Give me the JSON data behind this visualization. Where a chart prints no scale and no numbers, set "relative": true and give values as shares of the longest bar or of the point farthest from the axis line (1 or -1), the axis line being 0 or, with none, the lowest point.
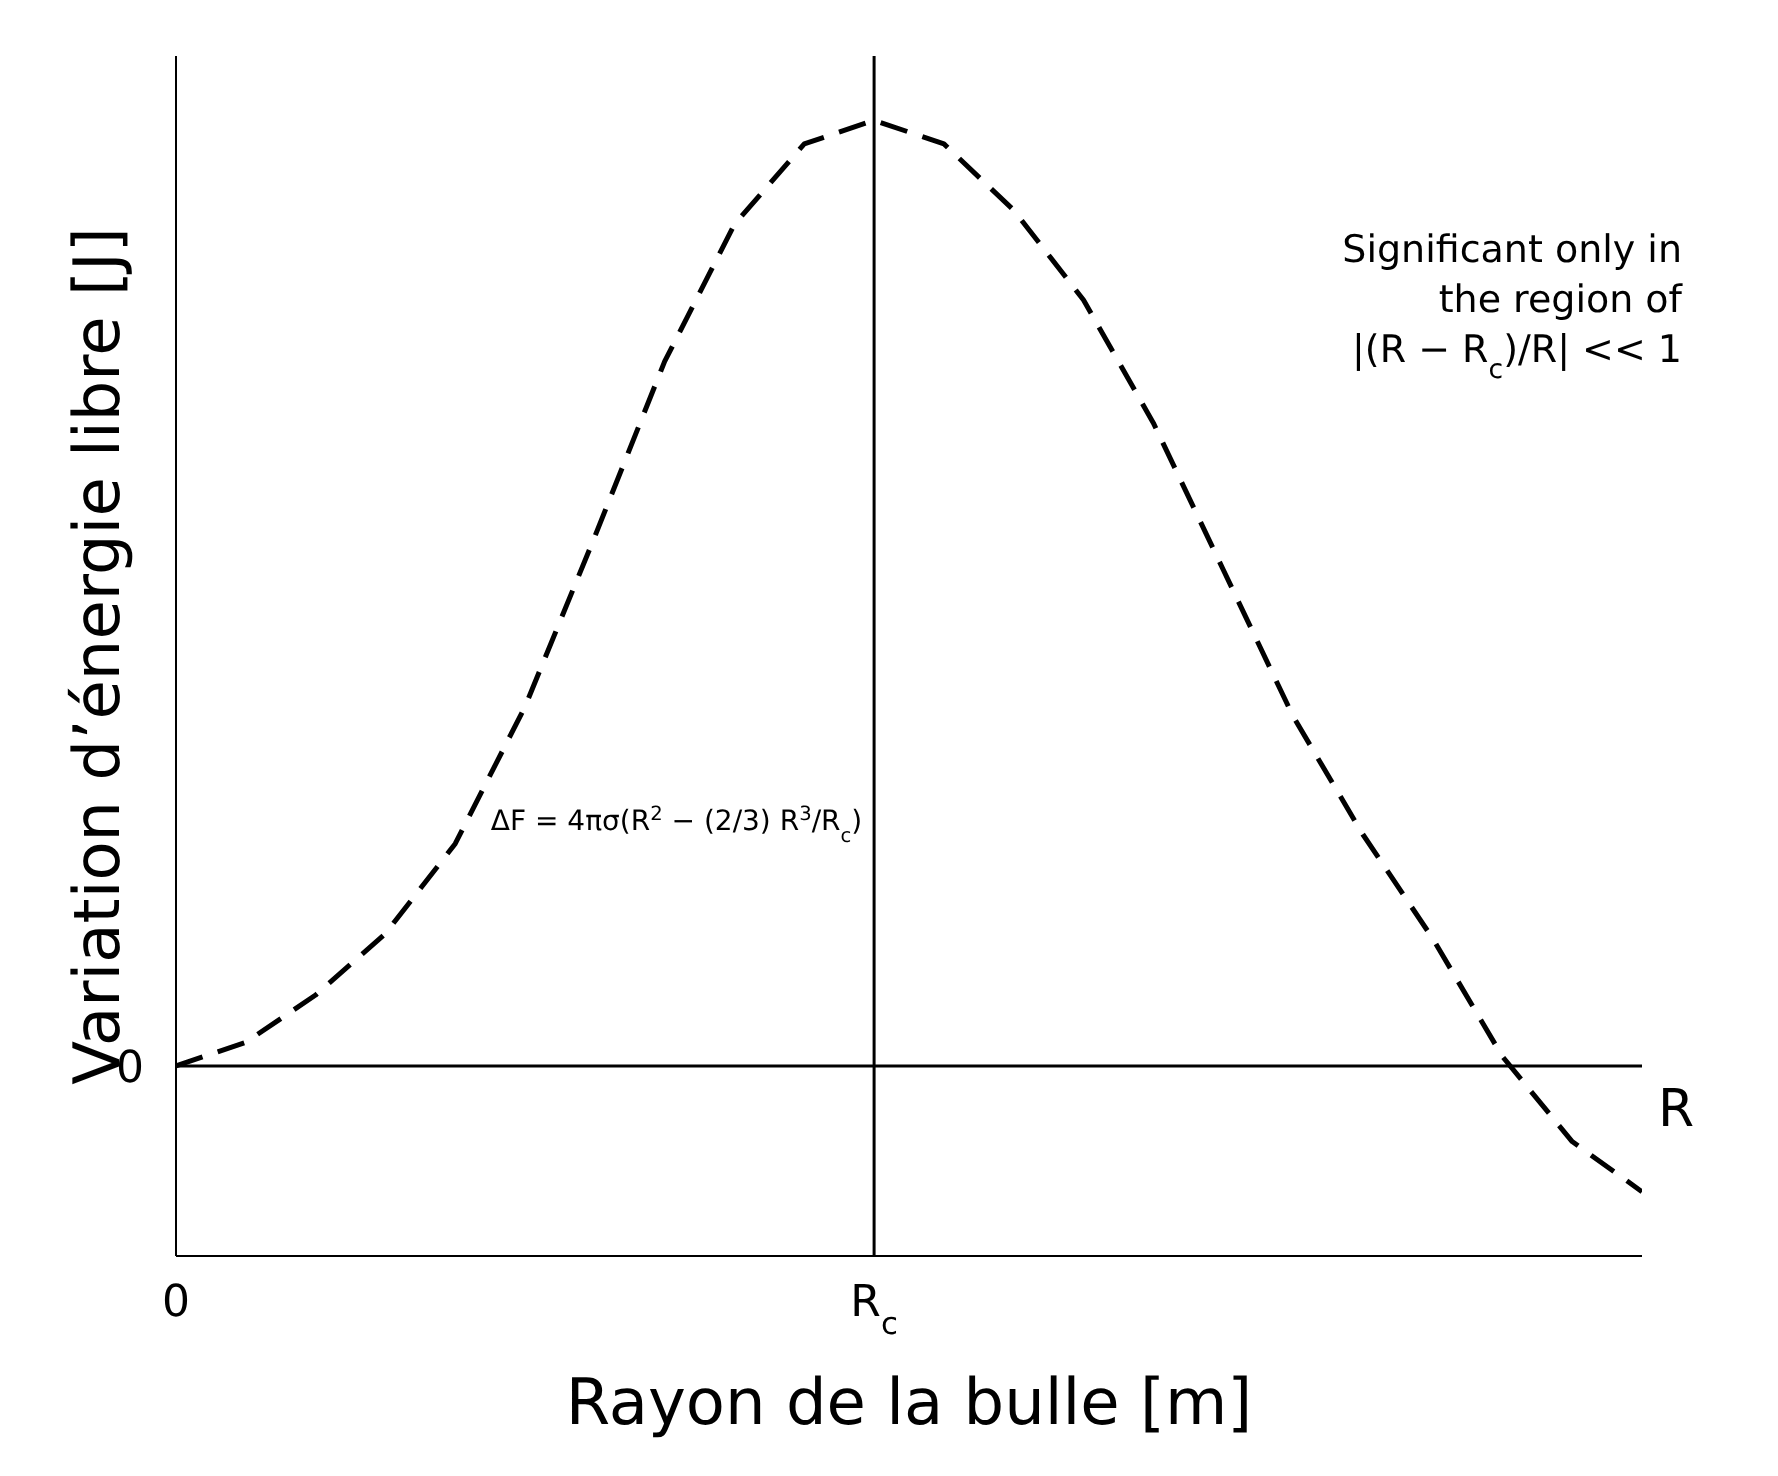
{
  "chart_data": {
    "type": "line",
    "relative": true,
    "xlabel": "Rayon de la bulle [m]",
    "ylabel": "Variation d’énergie libre [J]",
    "categories": [
      "0",
      null,
      null,
      null,
      null,
      null,
      null,
      null,
      null,
      null,
      "R$_{c}$",
      null,
      null,
      null,
      null,
      null,
      null,
      null,
      null,
      null,
      null,
      null
    ],
    "series": [
      {
        "color": "#000000",
        "values": [
          0,
          0.025,
          0.075,
          0.14,
          0.235,
          0.38,
          0.56,
          0.745,
          0.89,
          0.975,
          1,
          0.975,
          0.905,
          0.81,
          0.68,
          0.525,
          0.37,
          0.245,
          0.135,
          0.01,
          -0.08,
          -0.133
        ]
      }
    ],
    "line_style": "dashed",
    "marker": "none",
    "ref_lines": [
      {
        "axis": "x",
        "value": "R$_{c}$",
        "color": "#000000"
      }
    ],
    "annotations": [
      "ΔF = 4πσ(R$^{2}$ − (2/3) R$^{3}$/R$_{c}$)",
      "0",
      "R",
      "Significant only in\nthe region of\n|(R − R$_{c}$)/R| << 1"
    ]
  }
}
